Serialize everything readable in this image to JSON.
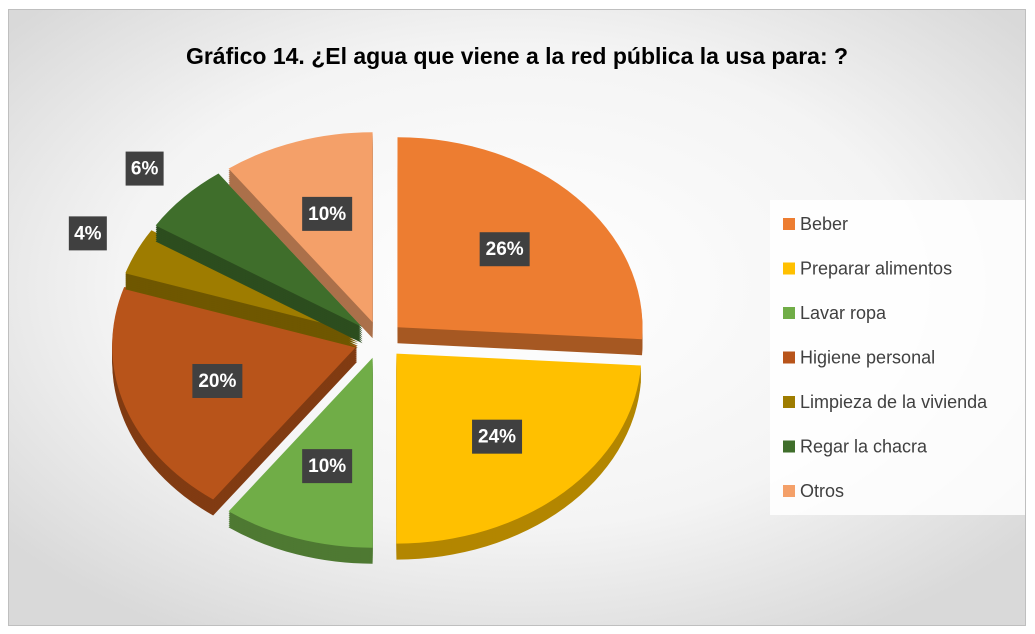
{
  "chart_data": {
    "type": "pie",
    "title": "Gráfico 14. ¿El agua que viene a la red pública la usa para: ?",
    "categories": [
      "Beber",
      "Preparar alimentos",
      "Lavar ropa",
      "Higiene personal",
      "Limpieza de la vivienda",
      "Regar la chacra",
      "Otros"
    ],
    "values": [
      26,
      24,
      10,
      20,
      4,
      6,
      10
    ],
    "value_labels": [
      "26%",
      "24%",
      "10%",
      "20%",
      "4%",
      "6%",
      "10%"
    ],
    "colors": [
      "#ED7D31",
      "#FFC000",
      "#70AD47",
      "#B8541A",
      "#9E7C00",
      "#3F6E2B",
      "#F4A069"
    ],
    "legend": "right"
  }
}
